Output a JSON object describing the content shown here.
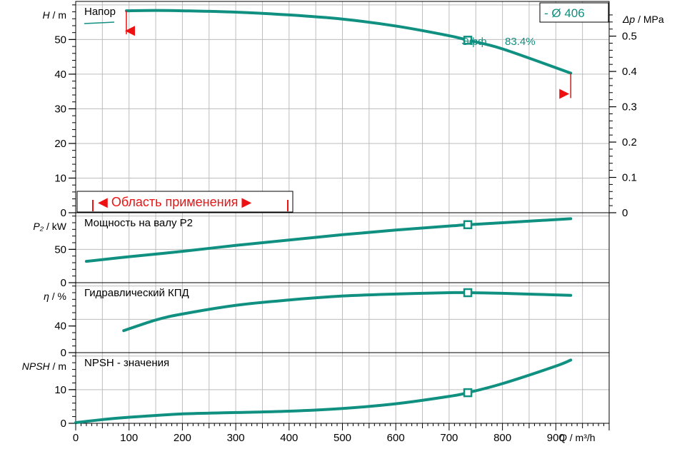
{
  "colors": {
    "curve": "#0f9080",
    "annotation": "#ee1111",
    "grid": "#bdbdbd",
    "axis": "#000000"
  },
  "chart_data": {
    "type": "line",
    "x_axis": {
      "label_symbol": "Q",
      "label_unit": "/ m³/h",
      "range": [
        0,
        1000
      ],
      "tick_values": [
        0,
        100,
        200,
        300,
        400,
        500,
        600,
        700,
        800,
        900
      ],
      "tick_labels": [
        "0",
        "100",
        "200",
        "300",
        "400",
        "500",
        "600",
        "700",
        "800",
        "900"
      ]
    },
    "operating_point_q": 735,
    "panels": [
      {
        "id": "head",
        "title": "Напор",
        "ylabel_symbol": "H",
        "ylabel_unit": "/ m",
        "ylim": [
          0,
          61
        ],
        "y_ticks": [
          0,
          10,
          20,
          30,
          40,
          50
        ],
        "y_tick_labels": [
          "0",
          "10",
          "20",
          "30",
          "40",
          "50"
        ],
        "secondary_axis": {
          "label_symbol": "Δp",
          "label_unit": "/ MPa",
          "ticks": [
            0,
            0.1,
            0.2,
            0.3,
            0.4,
            0.5
          ],
          "tick_labels": [
            "0",
            "0.1",
            "0.2",
            "0.3",
            "0.4",
            "0.5"
          ]
        },
        "series": [
          {
            "name": "- Ø 406",
            "x": [
              95,
              150,
              200,
              300,
              400,
              500,
              600,
              700,
              735,
              800,
              928
            ],
            "y": [
              58.3,
              58.4,
              58.3,
              57.9,
              57.1,
              55.9,
              53.9,
              51.1,
              49.8,
              47.3,
              40.3
            ]
          }
        ],
        "efficiency_label": "Эфф.",
        "efficiency_value": "83.4%",
        "application_range_label": "Область применения"
      },
      {
        "id": "power",
        "title": "Мощность на валу P2",
        "ylabel_symbol": "P₂",
        "ylabel_unit": "/ kW",
        "ylim": [
          0,
          105
        ],
        "y_ticks": [
          0,
          50
        ],
        "y_tick_labels": [
          "0",
          "50"
        ],
        "series": [
          {
            "name": "",
            "x": [
              20,
              100,
              200,
              300,
              400,
              500,
              600,
              700,
              735,
              800,
              928
            ],
            "y": [
              32,
              39,
              47,
              56,
              64,
              72,
              79,
              85,
              87,
              90,
              96
            ]
          }
        ]
      },
      {
        "id": "efficiency",
        "title": "Гидравлический КПД",
        "ylabel_symbol": "η",
        "ylabel_unit": "/ %",
        "ylim": [
          0,
          105
        ],
        "y_ticks": [
          0,
          40
        ],
        "y_tick_labels": [
          "0",
          "40"
        ],
        "series": [
          {
            "name": "",
            "x": [
              90,
              150,
              200,
              300,
              400,
              500,
              600,
              700,
              735,
              800,
              928
            ],
            "y": [
              33,
              49,
              58,
              71,
              79,
              85,
              88,
              90,
              90,
              89,
              86
            ]
          }
        ]
      },
      {
        "id": "npsh",
        "title": "NPSH - значения",
        "ylabel_symbol": "NPSH",
        "ylabel_unit": "/ m",
        "ylim": [
          0,
          21
        ],
        "y_ticks": [
          0,
          10
        ],
        "y_tick_labels": [
          "0",
          "10"
        ],
        "series": [
          {
            "name": "",
            "x": [
              0,
              50,
              100,
              200,
              300,
              400,
              500,
              600,
              700,
              735,
              800,
              900,
              928
            ],
            "y": [
              0.2,
              1.1,
              1.8,
              2.8,
              3.2,
              3.6,
              4.4,
              5.8,
              8.0,
              9.1,
              11.8,
              17.0,
              18.8
            ]
          }
        ]
      }
    ]
  }
}
